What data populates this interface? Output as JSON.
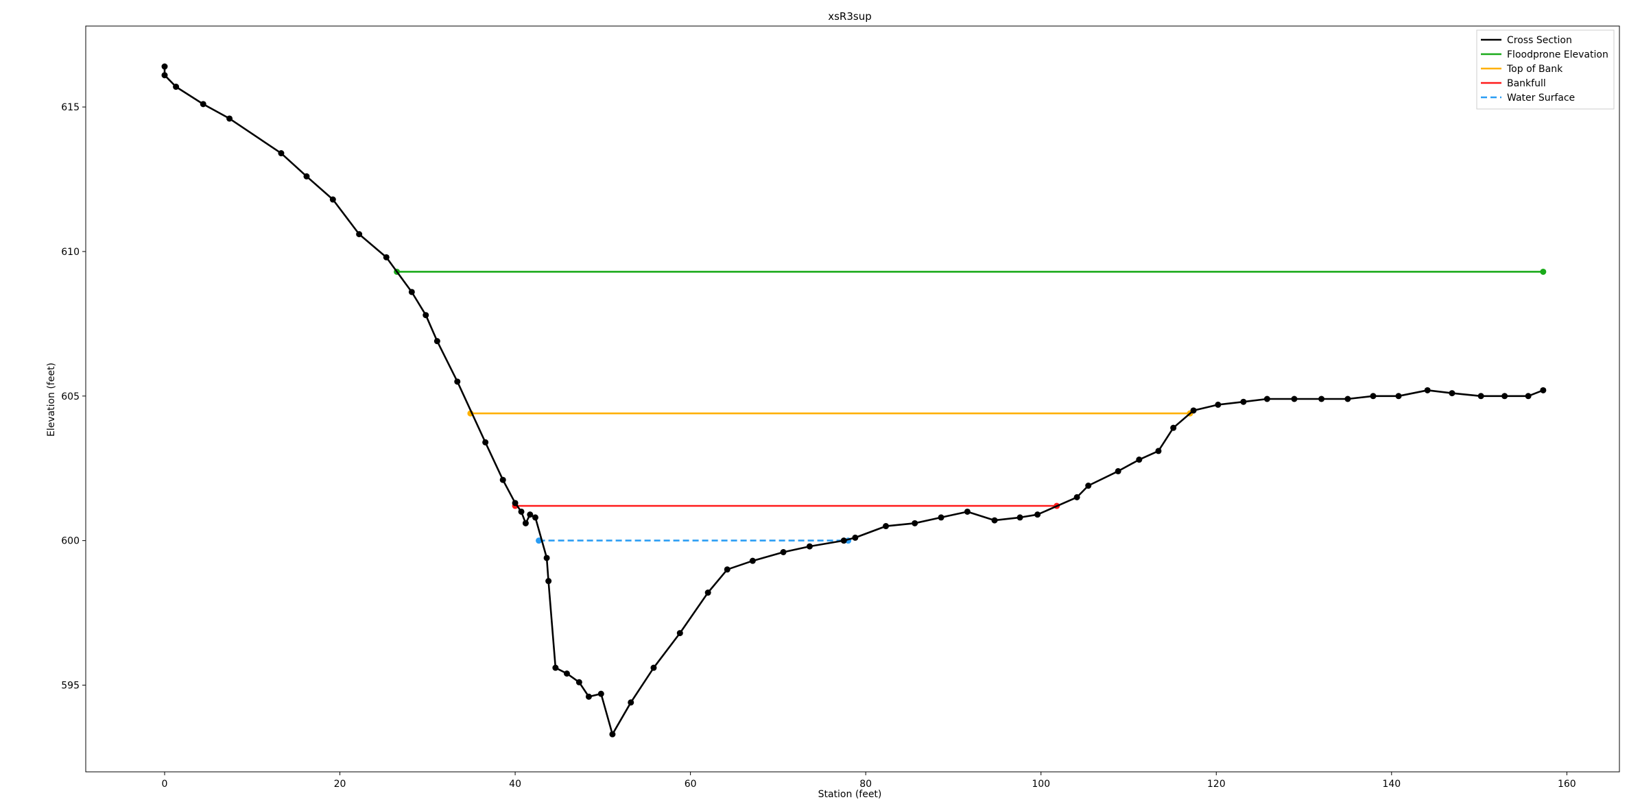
{
  "chart_data": {
    "type": "line",
    "title": "xsR3sup",
    "xlabel": "Station (feet)",
    "ylabel": "Elevation (feet)",
    "xlim": [
      -9,
      166
    ],
    "ylim": [
      592,
      617.8
    ],
    "xticks": [
      0,
      20,
      40,
      60,
      80,
      100,
      120,
      140,
      160
    ],
    "yticks": [
      595,
      600,
      605,
      610,
      615
    ],
    "grid": false,
    "legend_position": "top-right",
    "series": [
      {
        "name": "Cross Section",
        "color": "#000000",
        "style": "solid",
        "markers": true,
        "x": [
          0,
          0,
          1.3,
          4.4,
          7.4,
          13.3,
          16.2,
          19.2,
          22.2,
          25.3,
          28.2,
          29.8,
          31.1,
          33.4,
          36.6,
          38.6,
          40.0,
          40.7,
          41.2,
          41.7,
          42.3,
          43.6,
          43.8,
          44.6,
          45.9,
          47.3,
          48.4,
          49.8,
          51.1,
          53.2,
          55.8,
          58.8,
          62.0,
          64.2,
          67.1,
          70.6,
          73.6,
          77.5,
          78.8,
          82.3,
          85.6,
          88.6,
          91.6,
          94.7,
          97.6,
          99.6,
          104.1,
          105.4,
          108.8,
          111.2,
          113.4,
          115.1,
          117.4,
          120.2,
          123.1,
          125.8,
          128.9,
          132.0,
          135.0,
          137.9,
          140.8,
          144.1,
          146.9,
          150.2,
          152.9,
          155.6,
          157.3
        ],
        "y": [
          616.4,
          616.1,
          615.7,
          615.1,
          614.6,
          613.4,
          612.6,
          611.8,
          610.6,
          609.8,
          608.6,
          607.8,
          606.9,
          605.5,
          603.4,
          602.1,
          601.3,
          601.0,
          600.6,
          600.9,
          600.8,
          599.4,
          598.6,
          595.6,
          595.4,
          595.1,
          594.6,
          594.7,
          593.3,
          594.4,
          595.6,
          596.8,
          598.2,
          599.0,
          599.3,
          599.6,
          599.8,
          600.0,
          600.1,
          600.5,
          600.6,
          600.8,
          601.0,
          600.7,
          600.8,
          600.9,
          601.5,
          601.9,
          602.4,
          602.8,
          603.1,
          603.9,
          604.5,
          604.7,
          604.8,
          604.9,
          604.9,
          604.9,
          604.9,
          605.0,
          605.0,
          605.2,
          605.1,
          605.0,
          605.0,
          605.0,
          605.2
        ]
      },
      {
        "name": "Floodprone Elevation",
        "color": "#1aaa1a",
        "style": "solid",
        "markers": "ends",
        "x": [
          26.5,
          157.3
        ],
        "y": [
          609.3,
          609.3
        ]
      },
      {
        "name": "Top of Bank",
        "color": "#ffb000",
        "style": "solid",
        "markers": "ends",
        "x": [
          34.9,
          117.0
        ],
        "y": [
          604.4,
          604.4
        ]
      },
      {
        "name": "Bankfull",
        "color": "#ff1a1a",
        "style": "solid",
        "markers": "ends",
        "x": [
          40.0,
          101.8
        ],
        "y": [
          601.2,
          601.2
        ]
      },
      {
        "name": "Water Surface",
        "color": "#2a9df4",
        "style": "dashed",
        "markers": "ends",
        "x": [
          42.7,
          78.0
        ],
        "y": [
          600.0,
          600.0
        ]
      }
    ]
  }
}
